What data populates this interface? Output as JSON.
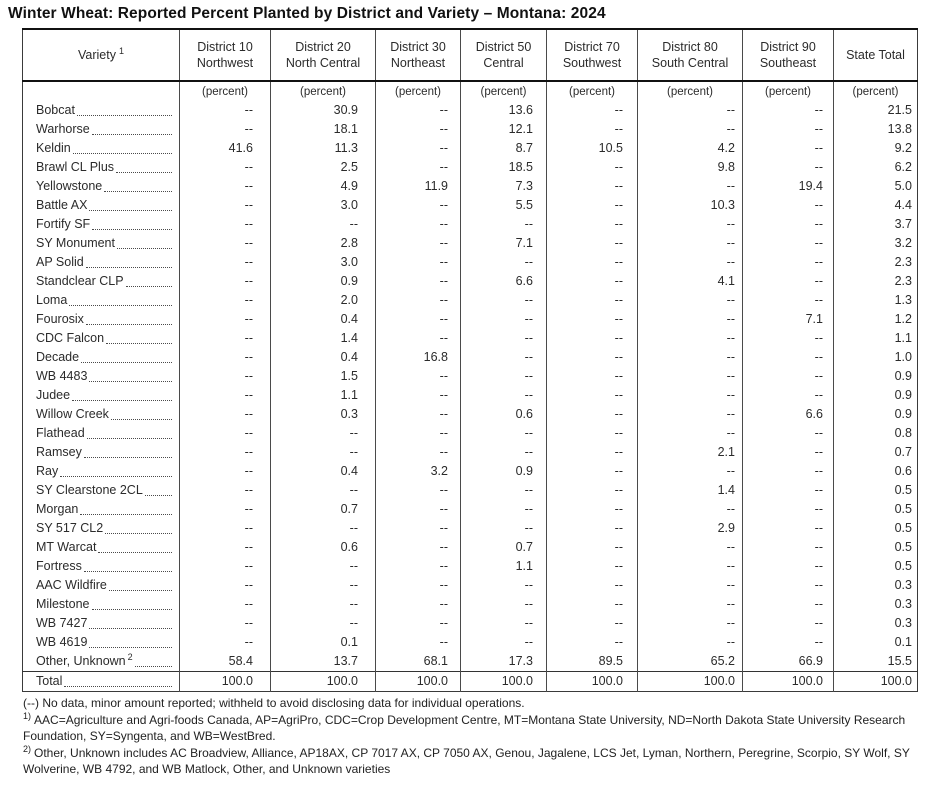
{
  "title": "Winter Wheat: Reported Percent Planted by District and Variety – Montana: 2024",
  "table": {
    "variety_header": {
      "label": "Variety",
      "sup": "1"
    },
    "unit_label": "(percent)",
    "district_columns": [
      {
        "line1": "District 10",
        "line2": "Northwest"
      },
      {
        "line1": "District 20",
        "line2": "North Central"
      },
      {
        "line1": "District 30",
        "line2": "Northeast"
      },
      {
        "line1": "District 50",
        "line2": "Central"
      },
      {
        "line1": "District 70",
        "line2": "Southwest"
      },
      {
        "line1": "District 80",
        "line2": "South Central"
      },
      {
        "line1": "District 90",
        "line2": "Southeast"
      },
      {
        "line1": "State Total",
        "line2": ""
      }
    ],
    "rows": [
      {
        "variety": "Bobcat",
        "sup": "",
        "values": [
          "--",
          "30.9",
          "--",
          "13.6",
          "--",
          "--",
          "--",
          "21.5"
        ]
      },
      {
        "variety": "Warhorse",
        "sup": "",
        "values": [
          "--",
          "18.1",
          "--",
          "12.1",
          "--",
          "--",
          "--",
          "13.8"
        ]
      },
      {
        "variety": "Keldin",
        "sup": "",
        "values": [
          "41.6",
          "11.3",
          "--",
          "8.7",
          "10.5",
          "4.2",
          "--",
          "9.2"
        ]
      },
      {
        "variety": "Brawl CL Plus",
        "sup": "",
        "values": [
          "--",
          "2.5",
          "--",
          "18.5",
          "--",
          "9.8",
          "--",
          "6.2"
        ]
      },
      {
        "variety": "Yellowstone",
        "sup": "",
        "values": [
          "--",
          "4.9",
          "11.9",
          "7.3",
          "--",
          "--",
          "19.4",
          "5.0"
        ]
      },
      {
        "variety": "Battle AX",
        "sup": "",
        "values": [
          "--",
          "3.0",
          "--",
          "5.5",
          "--",
          "10.3",
          "--",
          "4.4"
        ]
      },
      {
        "variety": "Fortify SF",
        "sup": "",
        "values": [
          "--",
          "--",
          "--",
          "--",
          "--",
          "--",
          "--",
          "3.7"
        ]
      },
      {
        "variety": "SY Monument",
        "sup": "",
        "values": [
          "--",
          "2.8",
          "--",
          "7.1",
          "--",
          "--",
          "--",
          "3.2"
        ]
      },
      {
        "variety": "AP Solid",
        "sup": "",
        "values": [
          "--",
          "3.0",
          "--",
          "--",
          "--",
          "--",
          "--",
          "2.3"
        ]
      },
      {
        "variety": "Standclear CLP",
        "sup": "",
        "values": [
          "--",
          "0.9",
          "--",
          "6.6",
          "--",
          "4.1",
          "--",
          "2.3"
        ]
      },
      {
        "variety": "Loma",
        "sup": "",
        "values": [
          "--",
          "2.0",
          "--",
          "--",
          "--",
          "--",
          "--",
          "1.3"
        ]
      },
      {
        "variety": "Fourosix",
        "sup": "",
        "values": [
          "--",
          "0.4",
          "--",
          "--",
          "--",
          "--",
          "7.1",
          "1.2"
        ]
      },
      {
        "variety": "CDC Falcon",
        "sup": "",
        "values": [
          "--",
          "1.4",
          "--",
          "--",
          "--",
          "--",
          "--",
          "1.1"
        ]
      },
      {
        "variety": "Decade",
        "sup": "",
        "values": [
          "--",
          "0.4",
          "16.8",
          "--",
          "--",
          "--",
          "--",
          "1.0"
        ]
      },
      {
        "variety": "WB 4483",
        "sup": "",
        "values": [
          "--",
          "1.5",
          "--",
          "--",
          "--",
          "--",
          "--",
          "0.9"
        ]
      },
      {
        "variety": "Judee",
        "sup": "",
        "values": [
          "--",
          "1.1",
          "--",
          "--",
          "--",
          "--",
          "--",
          "0.9"
        ]
      },
      {
        "variety": "Willow Creek",
        "sup": "",
        "values": [
          "--",
          "0.3",
          "--",
          "0.6",
          "--",
          "--",
          "6.6",
          "0.9"
        ]
      },
      {
        "variety": "Flathead",
        "sup": "",
        "values": [
          "--",
          "--",
          "--",
          "--",
          "--",
          "--",
          "--",
          "0.8"
        ]
      },
      {
        "variety": "Ramsey",
        "sup": "",
        "values": [
          "--",
          "--",
          "--",
          "--",
          "--",
          "2.1",
          "--",
          "0.7"
        ]
      },
      {
        "variety": "Ray",
        "sup": "",
        "values": [
          "--",
          "0.4",
          "3.2",
          "0.9",
          "--",
          "--",
          "--",
          "0.6"
        ]
      },
      {
        "variety": "SY Clearstone 2CL",
        "sup": "",
        "values": [
          "--",
          "--",
          "--",
          "--",
          "--",
          "1.4",
          "--",
          "0.5"
        ]
      },
      {
        "variety": "Morgan",
        "sup": "",
        "values": [
          "--",
          "0.7",
          "--",
          "--",
          "--",
          "--",
          "--",
          "0.5"
        ]
      },
      {
        "variety": "SY 517 CL2",
        "sup": "",
        "values": [
          "--",
          "--",
          "--",
          "--",
          "--",
          "2.9",
          "--",
          "0.5"
        ]
      },
      {
        "variety": "MT Warcat",
        "sup": "",
        "values": [
          "--",
          "0.6",
          "--",
          "0.7",
          "--",
          "--",
          "--",
          "0.5"
        ]
      },
      {
        "variety": "Fortress",
        "sup": "",
        "values": [
          "--",
          "--",
          "--",
          "1.1",
          "--",
          "--",
          "--",
          "0.5"
        ]
      },
      {
        "variety": "AAC Wildfire",
        "sup": "",
        "values": [
          "--",
          "--",
          "--",
          "--",
          "--",
          "--",
          "--",
          "0.3"
        ]
      },
      {
        "variety": "Milestone",
        "sup": "",
        "values": [
          "--",
          "--",
          "--",
          "--",
          "--",
          "--",
          "--",
          "0.3"
        ]
      },
      {
        "variety": "WB 7427",
        "sup": "",
        "values": [
          "--",
          "--",
          "--",
          "--",
          "--",
          "--",
          "--",
          "0.3"
        ]
      },
      {
        "variety": "WB 4619",
        "sup": "",
        "values": [
          "--",
          "0.1",
          "--",
          "--",
          "--",
          "--",
          "--",
          "0.1"
        ]
      },
      {
        "variety": "Other, Unknown",
        "sup": "2",
        "values": [
          "58.4",
          "13.7",
          "68.1",
          "17.3",
          "89.5",
          "65.2",
          "66.9",
          "15.5"
        ]
      }
    ],
    "total_row": {
      "variety": "Total",
      "values": [
        "100.0",
        "100.0",
        "100.0",
        "100.0",
        "100.0",
        "100.0",
        "100.0",
        "100.0"
      ]
    }
  },
  "footnotes": [
    {
      "marker": "",
      "text": "(--) No data, minor amount reported; withheld to avoid disclosing data for individual operations."
    },
    {
      "marker": "1)",
      "text": "AAC=Agriculture and Agri-foods Canada, AP=AgriPro, CDC=Crop Development Centre, MT=Montana State University, ND=North Dakota State University Research Foundation, SY=Syngenta, and WB=WestBred."
    },
    {
      "marker": "2)",
      "text": "Other, Unknown includes AC Broadview, Alliance, AP18AX, CP 7017 AX, CP 7050 AX, Genou, Jagalene, LCS Jet, Lyman, Northern, Peregrine, Scorpio, SY Wolf, SY Wolverine, WB 4792, and WB Matlock, Other, and Unknown varieties"
    }
  ]
}
